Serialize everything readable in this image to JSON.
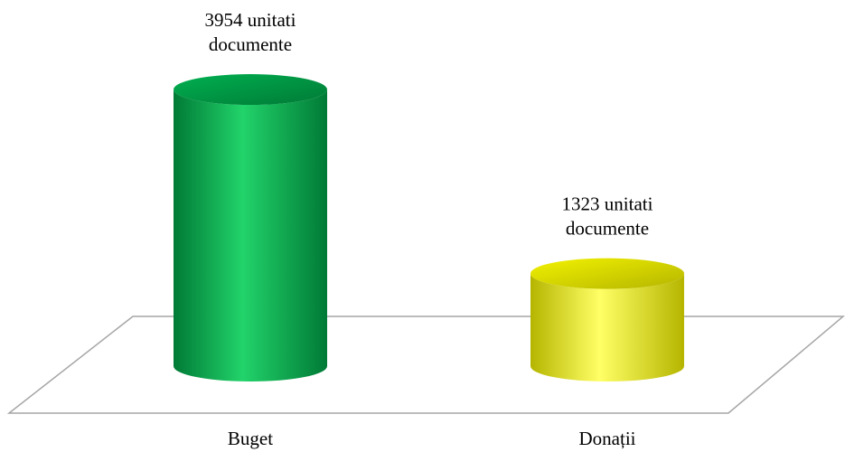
{
  "chart_data": {
    "type": "bar",
    "style": "3d-cylinder",
    "title": "",
    "xlabel": "",
    "ylabel": "",
    "ylim": [
      0,
      4200
    ],
    "grid": false,
    "legend": "none",
    "categories": [
      "Buget",
      "Donații"
    ],
    "values": [
      3954,
      1323
    ],
    "data_labels": [
      [
        "3954 unitati",
        "documente"
      ],
      [
        "1323 unitati",
        "documente"
      ]
    ],
    "colors": {
      "Buget": {
        "light": "#22d36a",
        "mid": "#00b050",
        "dark": "#007a36"
      },
      "Donații": {
        "light": "#ffff66",
        "mid": "#f2f200",
        "dark": "#b5b500"
      },
      "floor": "#a6a6a6"
    }
  }
}
